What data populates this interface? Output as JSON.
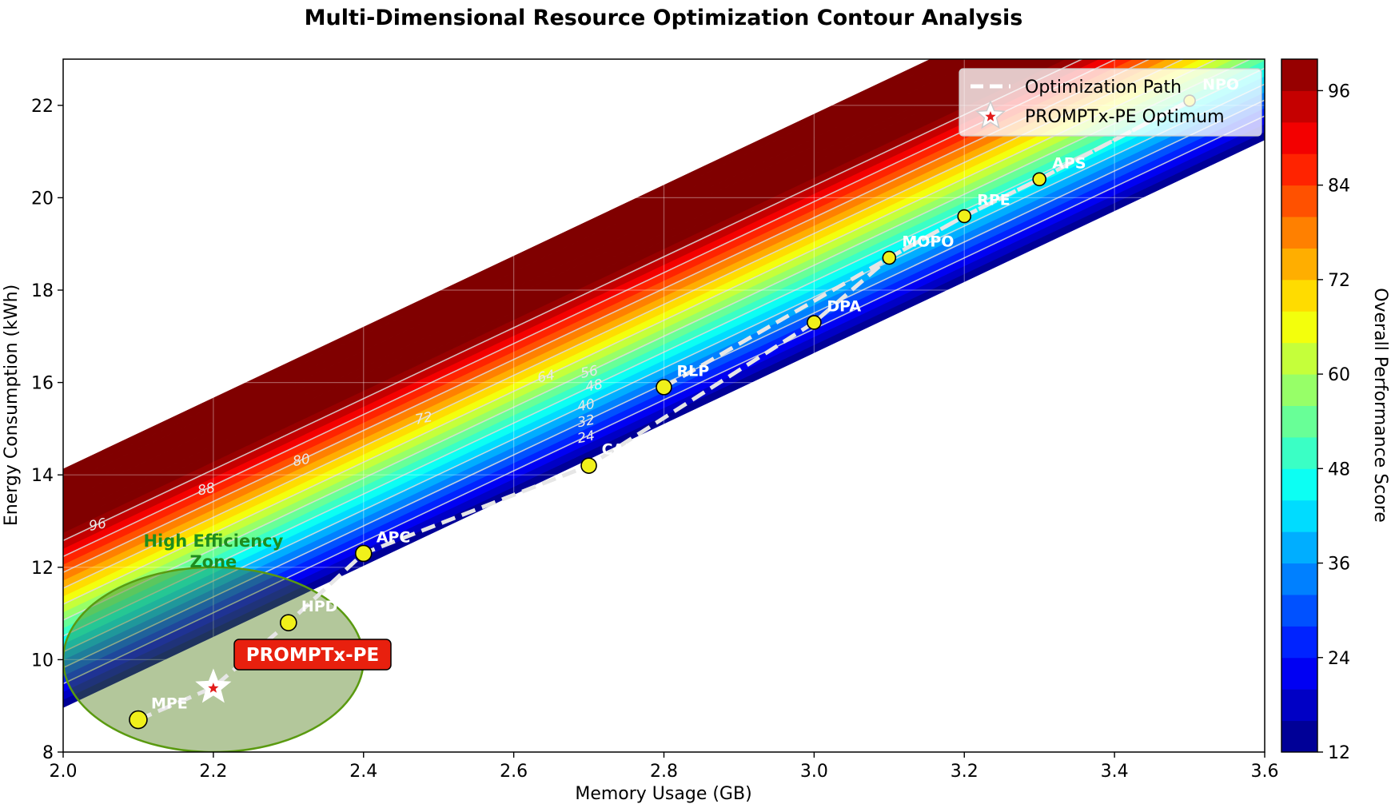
{
  "chart_data": {
    "type": "contour",
    "title": "Multi-Dimensional Resource Optimization Contour Analysis",
    "xlabel": "Memory Usage (GB)",
    "ylabel": "Energy Consumption (kWh)",
    "colorbar_label": "Overall Performance Score",
    "xlim": [
      2.0,
      3.6
    ],
    "ylim": [
      8,
      23
    ],
    "xticks": [
      2.0,
      2.2,
      2.4,
      2.6,
      2.8,
      3.0,
      3.2,
      3.4,
      3.6
    ],
    "xtick_labels": [
      "2.0",
      "2.2",
      "2.4",
      "2.6",
      "2.8",
      "3.0",
      "3.2",
      "3.4",
      "3.6"
    ],
    "yticks": [
      8,
      10,
      12,
      14,
      16,
      18,
      20,
      22
    ],
    "ytick_labels": [
      "8",
      "10",
      "12",
      "14",
      "16",
      "18",
      "20",
      "22"
    ],
    "colorbar_range": [
      12,
      100
    ],
    "colorbar_ticks": [
      12,
      24,
      36,
      48,
      60,
      72,
      84,
      96
    ],
    "colorbar_tick_labels": [
      "12",
      "24",
      "36",
      "48",
      "60",
      "72",
      "84",
      "96"
    ],
    "contour_levels": [
      24,
      32,
      40,
      48,
      56,
      64,
      72,
      80,
      88,
      96
    ],
    "contour_labels": [
      "24",
      "32",
      "40",
      "48",
      "56",
      "64",
      "72",
      "80",
      "88",
      "96"
    ],
    "points": [
      {
        "name": "MPE",
        "x": 2.1,
        "y": 8.7
      },
      {
        "name": "HPD",
        "x": 2.3,
        "y": 10.8
      },
      {
        "name": "APC",
        "x": 2.4,
        "y": 12.3
      },
      {
        "name": "CAP",
        "x": 2.7,
        "y": 14.2
      },
      {
        "name": "RLP",
        "x": 2.8,
        "y": 15.9
      },
      {
        "name": "DPA",
        "x": 3.0,
        "y": 17.3
      },
      {
        "name": "MOPO",
        "x": 3.1,
        "y": 18.7
      },
      {
        "name": "RPE",
        "x": 3.2,
        "y": 19.6
      },
      {
        "name": "APS",
        "x": 3.3,
        "y": 20.4
      },
      {
        "name": "NPO",
        "x": 3.5,
        "y": 22.1
      }
    ],
    "optimum": {
      "name": "PROMPTx-PE",
      "x": 2.2,
      "y": 9.4
    },
    "zone": {
      "label_line1": "High Efficiency",
      "label_line2": "Zone",
      "center_x": 2.2,
      "center_y": 10.0,
      "radius_x": 0.2,
      "radius_y": 2.0
    },
    "legend": [
      {
        "label": "Optimization Path",
        "marker": "dashed-line"
      },
      {
        "label": "PROMPTx-PE Optimum",
        "marker": "star"
      }
    ]
  }
}
